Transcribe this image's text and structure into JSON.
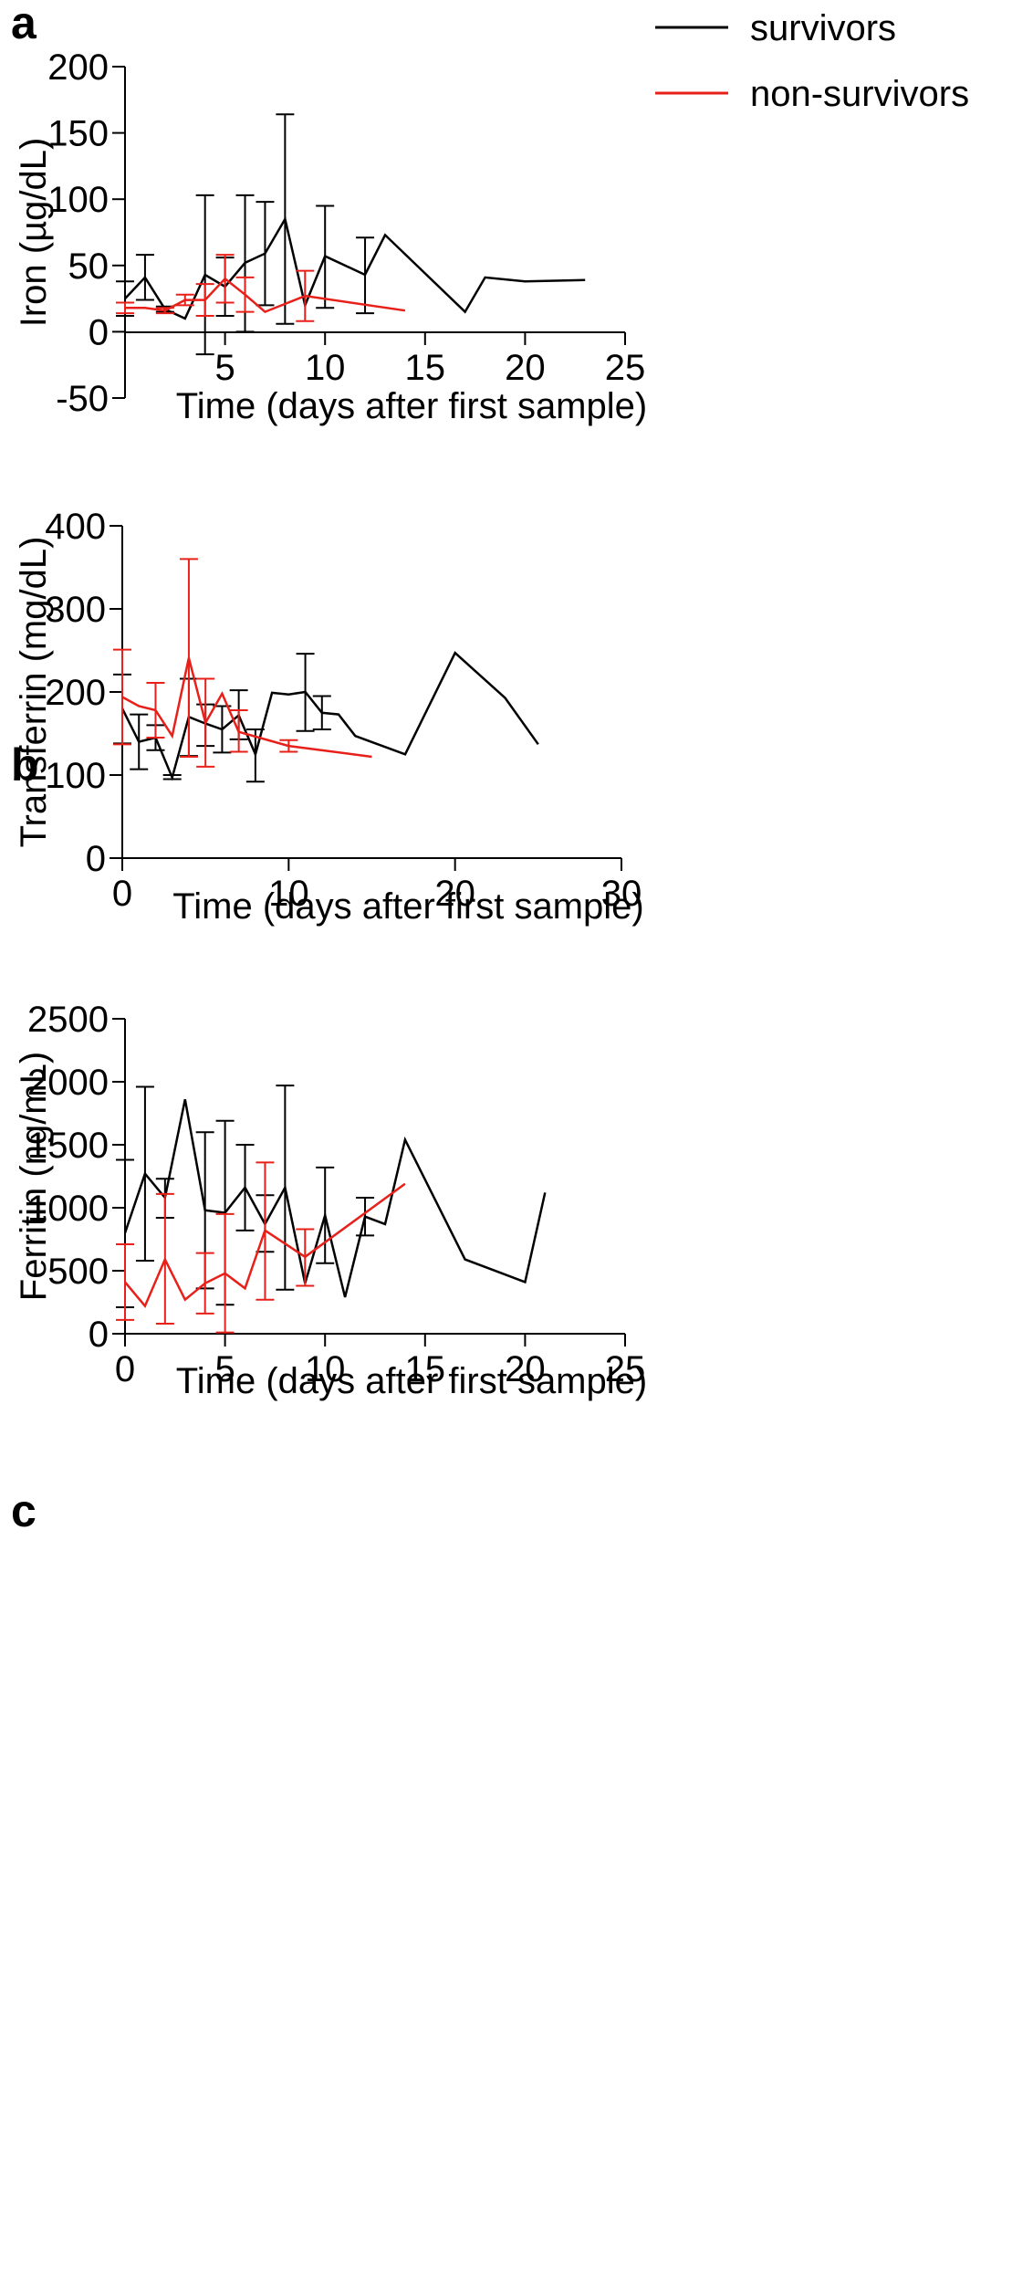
{
  "legend": {
    "entries": [
      {
        "label": "survivors",
        "color": "#000000"
      },
      {
        "label": "non-survivors",
        "color": "#e8201a"
      }
    ],
    "placement": "top-right"
  },
  "chart_data": [
    {
      "type": "line",
      "panel": "a",
      "xlabel": "Time  (days after first sample)",
      "ylabel": "Iron (µg/dL)",
      "xlim": [
        0,
        25
      ],
      "ylim": [
        -50,
        200
      ],
      "xticks": [
        5,
        10,
        15,
        20,
        25
      ],
      "yticks": [
        -50,
        0,
        50,
        100,
        150,
        200
      ],
      "grid": false,
      "series": [
        {
          "name": "survivors",
          "color": "#000000",
          "points": [
            {
              "x": 0,
              "y": 25,
              "lo": 12,
              "hi": 38
            },
            {
              "x": 1,
              "y": 41,
              "lo": 24,
              "hi": 58
            },
            {
              "x": 2,
              "y": 17,
              "lo": 15,
              "hi": 19
            },
            {
              "x": 3,
              "y": 10
            },
            {
              "x": 4,
              "y": 43,
              "lo": -17,
              "hi": 103
            },
            {
              "x": 5,
              "y": 34,
              "lo": 12,
              "hi": 56
            },
            {
              "x": 6,
              "y": 52,
              "lo": 0,
              "hi": 103
            },
            {
              "x": 7,
              "y": 59,
              "lo": 20,
              "hi": 98
            },
            {
              "x": 8,
              "y": 85,
              "lo": 6,
              "hi": 164
            },
            {
              "x": 9,
              "y": 20
            },
            {
              "x": 10,
              "y": 57,
              "lo": 18,
              "hi": 95
            },
            {
              "x": 12,
              "y": 43,
              "lo": 14,
              "hi": 71
            },
            {
              "x": 13,
              "y": 73
            },
            {
              "x": 17,
              "y": 15
            },
            {
              "x": 18,
              "y": 41
            },
            {
              "x": 20,
              "y": 38
            },
            {
              "x": 23,
              "y": 39
            }
          ]
        },
        {
          "name": "non-survivors",
          "color": "#e8201a",
          "points": [
            {
              "x": 0,
              "y": 18,
              "lo": 14,
              "hi": 22
            },
            {
              "x": 1,
              "y": 18
            },
            {
              "x": 2,
              "y": 16,
              "lo": 14,
              "hi": 18
            },
            {
              "x": 3,
              "y": 24,
              "lo": 20,
              "hi": 28
            },
            {
              "x": 4,
              "y": 24,
              "lo": 12,
              "hi": 36
            },
            {
              "x": 5,
              "y": 40,
              "lo": 22,
              "hi": 58
            },
            {
              "x": 6,
              "y": 28,
              "lo": 15,
              "hi": 41
            },
            {
              "x": 7,
              "y": 15
            },
            {
              "x": 9,
              "y": 27,
              "lo": 8,
              "hi": 46
            },
            {
              "x": 14,
              "y": 16
            }
          ]
        }
      ]
    },
    {
      "type": "line",
      "panel": "b",
      "xlabel": "Time  (days after first sample)",
      "ylabel": "Transferrin (mg/dL)",
      "xlim": [
        0,
        30
      ],
      "ylim": [
        0,
        400
      ],
      "xticks": [
        0,
        10,
        20,
        30
      ],
      "yticks": [
        0,
        100,
        200,
        300,
        400
      ],
      "grid": false,
      "series": [
        {
          "name": "survivors",
          "color": "#000000",
          "points": [
            {
              "x": 0,
              "y": 180,
              "lo": 138,
              "hi": 221
            },
            {
              "x": 1,
              "y": 140,
              "lo": 107,
              "hi": 173
            },
            {
              "x": 2,
              "y": 145,
              "lo": 130,
              "hi": 160
            },
            {
              "x": 3,
              "y": 97,
              "lo": 95,
              "hi": 100
            },
            {
              "x": 4,
              "y": 170,
              "lo": 123,
              "hi": 216
            },
            {
              "x": 5,
              "y": 162,
              "lo": 135,
              "hi": 185
            },
            {
              "x": 6,
              "y": 155,
              "lo": 127,
              "hi": 183
            },
            {
              "x": 7,
              "y": 172,
              "lo": 143,
              "hi": 202
            },
            {
              "x": 8,
              "y": 125,
              "lo": 92,
              "hi": 155
            },
            {
              "x": 9,
              "y": 199
            },
            {
              "x": 10,
              "y": 197
            },
            {
              "x": 11,
              "y": 200,
              "lo": 153,
              "hi": 246
            },
            {
              "x": 12,
              "y": 175,
              "lo": 155,
              "hi": 195
            },
            {
              "x": 13,
              "y": 173
            },
            {
              "x": 14,
              "y": 147
            },
            {
              "x": 17,
              "y": 125
            },
            {
              "x": 20,
              "y": 247
            },
            {
              "x": 23,
              "y": 193
            },
            {
              "x": 25,
              "y": 137
            }
          ]
        },
        {
          "name": "non-survivors",
          "color": "#e8201a",
          "points": [
            {
              "x": 0,
              "y": 194,
              "lo": 137,
              "hi": 251
            },
            {
              "x": 1,
              "y": 183
            },
            {
              "x": 2,
              "y": 178,
              "lo": 145,
              "hi": 211
            },
            {
              "x": 3,
              "y": 147
            },
            {
              "x": 4,
              "y": 241,
              "lo": 122,
              "hi": 360
            },
            {
              "x": 5,
              "y": 163,
              "lo": 110,
              "hi": 216
            },
            {
              "x": 6,
              "y": 198
            },
            {
              "x": 7,
              "y": 152,
              "lo": 128,
              "hi": 178
            },
            {
              "x": 10,
              "y": 135,
              "lo": 128,
              "hi": 142
            },
            {
              "x": 15,
              "y": 122
            }
          ]
        }
      ]
    },
    {
      "type": "line",
      "panel": "c",
      "xlabel": "Time  (days after first sample)",
      "ylabel": "Ferritin (ng/mL)",
      "xlim": [
        0,
        25
      ],
      "ylim": [
        0,
        2500
      ],
      "xticks": [
        0,
        5,
        10,
        15,
        20,
        25
      ],
      "yticks": [
        0,
        500,
        1000,
        1500,
        2000,
        2500
      ],
      "grid": false,
      "series": [
        {
          "name": "survivors",
          "color": "#000000",
          "points": [
            {
              "x": 0,
              "y": 800,
              "lo": 210,
              "hi": 1380
            },
            {
              "x": 1,
              "y": 1270,
              "lo": 580,
              "hi": 1960
            },
            {
              "x": 2,
              "y": 1080,
              "lo": 920,
              "hi": 1230
            },
            {
              "x": 3,
              "y": 1860
            },
            {
              "x": 4,
              "y": 980,
              "lo": 360,
              "hi": 1600
            },
            {
              "x": 5,
              "y": 960,
              "lo": 230,
              "hi": 1690
            },
            {
              "x": 6,
              "y": 1160,
              "lo": 820,
              "hi": 1500
            },
            {
              "x": 7,
              "y": 870,
              "lo": 650,
              "hi": 1100
            },
            {
              "x": 8,
              "y": 1160,
              "lo": 350,
              "hi": 1970
            },
            {
              "x": 9,
              "y": 400
            },
            {
              "x": 10,
              "y": 940,
              "lo": 560,
              "hi": 1320
            },
            {
              "x": 11,
              "y": 290
            },
            {
              "x": 12,
              "y": 930,
              "lo": 780,
              "hi": 1080
            },
            {
              "x": 13,
              "y": 870
            },
            {
              "x": 14,
              "y": 1540
            },
            {
              "x": 17,
              "y": 590
            },
            {
              "x": 20,
              "y": 410
            },
            {
              "x": 21,
              "y": 1120
            }
          ]
        },
        {
          "name": "non-survivors",
          "color": "#e8201a",
          "points": [
            {
              "x": 0,
              "y": 410,
              "lo": 110,
              "hi": 710
            },
            {
              "x": 1,
              "y": 220
            },
            {
              "x": 2,
              "y": 590,
              "lo": 80,
              "hi": 1110
            },
            {
              "x": 3,
              "y": 270
            },
            {
              "x": 4,
              "y": 400,
              "lo": 160,
              "hi": 640
            },
            {
              "x": 5,
              "y": 480,
              "lo": 10,
              "hi": 950
            },
            {
              "x": 6,
              "y": 360
            },
            {
              "x": 7,
              "y": 820,
              "lo": 270,
              "hi": 1360
            },
            {
              "x": 9,
              "y": 610,
              "lo": 380,
              "hi": 830
            },
            {
              "x": 14,
              "y": 1190
            }
          ]
        }
      ]
    }
  ]
}
